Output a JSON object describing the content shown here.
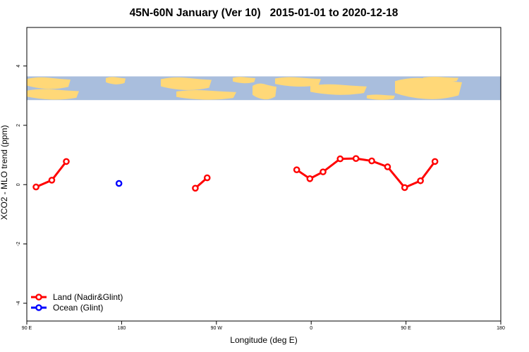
{
  "chart_data": {
    "type": "line",
    "title": "45N-60N January (Ver 10)   2015-01-01 to 2020-12-18",
    "xlabel": "Longitude (deg E)",
    "ylabel": "XCO2 - MLO trend (ppm)",
    "xlim": [
      90,
      450
    ],
    "ylim": [
      -4.6,
      5.3
    ],
    "x_ticks": [
      {
        "value": 90,
        "label": "90 E"
      },
      {
        "value": 180,
        "label": "180"
      },
      {
        "value": 270,
        "label": "90 W"
      },
      {
        "value": 360,
        "label": "0"
      },
      {
        "value": 450,
        "label": "90 E"
      },
      {
        "value": 540,
        "label": "180"
      }
    ],
    "y_ticks": [
      {
        "value": -4,
        "label": "-4"
      },
      {
        "value": -2,
        "label": "-2"
      },
      {
        "value": 0,
        "label": "0"
      },
      {
        "value": 2,
        "label": "2"
      },
      {
        "value": 4,
        "label": "4"
      }
    ],
    "map_band": {
      "y_range": [
        2.85,
        3.65
      ]
    },
    "series": [
      {
        "name": "Land (Nadir&Glint)",
        "color": "#ff0000",
        "segments": [
          [
            [
              97,
              -0.08
            ],
            [
              109,
              0.15
            ],
            [
              120,
              0.78
            ]
          ],
          [
            [
              218,
              -0.12
            ],
            [
              227,
              0.23
            ]
          ],
          [
            [
              295,
              0.5
            ],
            [
              305,
              0.2
            ],
            [
              315,
              0.43
            ],
            [
              328,
              0.87
            ],
            [
              340,
              0.88
            ],
            [
              352,
              0.8
            ],
            [
              364,
              0.6
            ],
            [
              377,
              -0.1
            ],
            [
              389,
              0.13
            ],
            [
              400,
              0.78
            ]
          ]
        ]
      },
      {
        "name": "Ocean (Glint)",
        "color": "#0000ff",
        "segments": [
          [
            [
              160,
              0.04
            ]
          ]
        ]
      }
    ],
    "legend_position": "bottom-left"
  }
}
